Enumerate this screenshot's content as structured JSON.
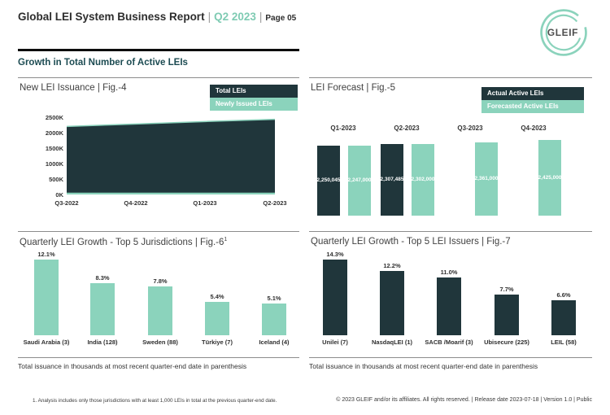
{
  "header": {
    "title": "Global LEI System Business Report",
    "separator": "|",
    "period": "Q2 2023",
    "page_label": "Page 05",
    "logo_text": "GLEIF"
  },
  "section_title": "Growth in Total Number of Active LEIs",
  "colors": {
    "dark_teal": "#20363b",
    "mint": "#8bd3bc",
    "accent_text": "#7fcbb3"
  },
  "footer": {
    "chart_note": "Total issuance in thousands at most recent quarter-end date in parenthesis",
    "footnote": "1. Analysis includes only those jurisdictions with at least 1,000 LEIs in total at the previous quarter-end date.",
    "copyright": "© 2023 GLEIF and/or its affiliates. All rights reserved. | Release date 2023-07-18 | Version 1.0 | Public"
  },
  "chart_data": [
    {
      "id": "fig4",
      "type": "area",
      "title": "New LEI Issuance | Fig.-4",
      "x": [
        "Q3-2022",
        "Q4-2022",
        "Q1-2023",
        "Q2-2023"
      ],
      "series": [
        {
          "name": "Total LEIs",
          "values": [
            2200,
            2280,
            2360,
            2430
          ],
          "color": "#20363b"
        },
        {
          "name": "Newly Issued LEIs",
          "values": [
            60,
            60,
            60,
            60
          ],
          "color": "#8bd3bc"
        }
      ],
      "y_unit": "K",
      "ylim": [
        0,
        2500
      ],
      "y_ticks": [
        "2500K",
        "2000K",
        "1500K",
        "1000K",
        "500K",
        "0K"
      ],
      "legend_position": "top-right",
      "grid": false
    },
    {
      "id": "fig5",
      "type": "bar",
      "title": "LEI Forecast | Fig.-5",
      "categories": [
        "Q1-2023",
        "Q2-2023",
        "Q3-2023",
        "Q4-2023"
      ],
      "series": [
        {
          "name": "Actual Active LEIs",
          "values": [
            2250045,
            2307485,
            null,
            null
          ],
          "labels": [
            "2,250,045",
            "2,307,485",
            null,
            null
          ],
          "color": "#20363b"
        },
        {
          "name": "Forecasted Active LEIs",
          "values": [
            2247000,
            2302000,
            2361000,
            2425000
          ],
          "labels": [
            "2,247,000",
            "2,302,000",
            "2,361,000",
            "2,425,000"
          ],
          "color": "#8bd3bc"
        }
      ],
      "ylim": [
        0,
        2425000
      ],
      "legend_position": "top-right",
      "grid": false
    },
    {
      "id": "fig6",
      "type": "bar",
      "title": "Quarterly LEI Growth - Top 5 Jurisdictions | Fig.-6",
      "title_superscript": "1",
      "categories": [
        "Saudi Arabia (3)",
        "India (128)",
        "Sweden (88)",
        "Türkiye (7)",
        "Iceland (4)"
      ],
      "values": [
        12.1,
        8.3,
        7.8,
        5.4,
        5.1
      ],
      "labels": [
        "12.1%",
        "8.3%",
        "7.8%",
        "5.4%",
        "5.1%"
      ],
      "ylim": [
        0,
        12.1
      ],
      "color": "#8bd3bc",
      "grid": false
    },
    {
      "id": "fig7",
      "type": "bar",
      "title": "Quarterly LEI Growth - Top 5 LEI Issuers | Fig.-7",
      "categories": [
        "Unilei (7)",
        "NasdaqLEI (1)",
        "SACB /Moarif (3)",
        "Ubisecure (225)",
        "LEIL (58)"
      ],
      "values": [
        14.3,
        12.2,
        11.0,
        7.7,
        6.6
      ],
      "labels": [
        "14.3%",
        "12.2%",
        "11.0%",
        "7.7%",
        "6.6%"
      ],
      "ylim": [
        0,
        14.3
      ],
      "color": "#20363b",
      "grid": false
    }
  ]
}
